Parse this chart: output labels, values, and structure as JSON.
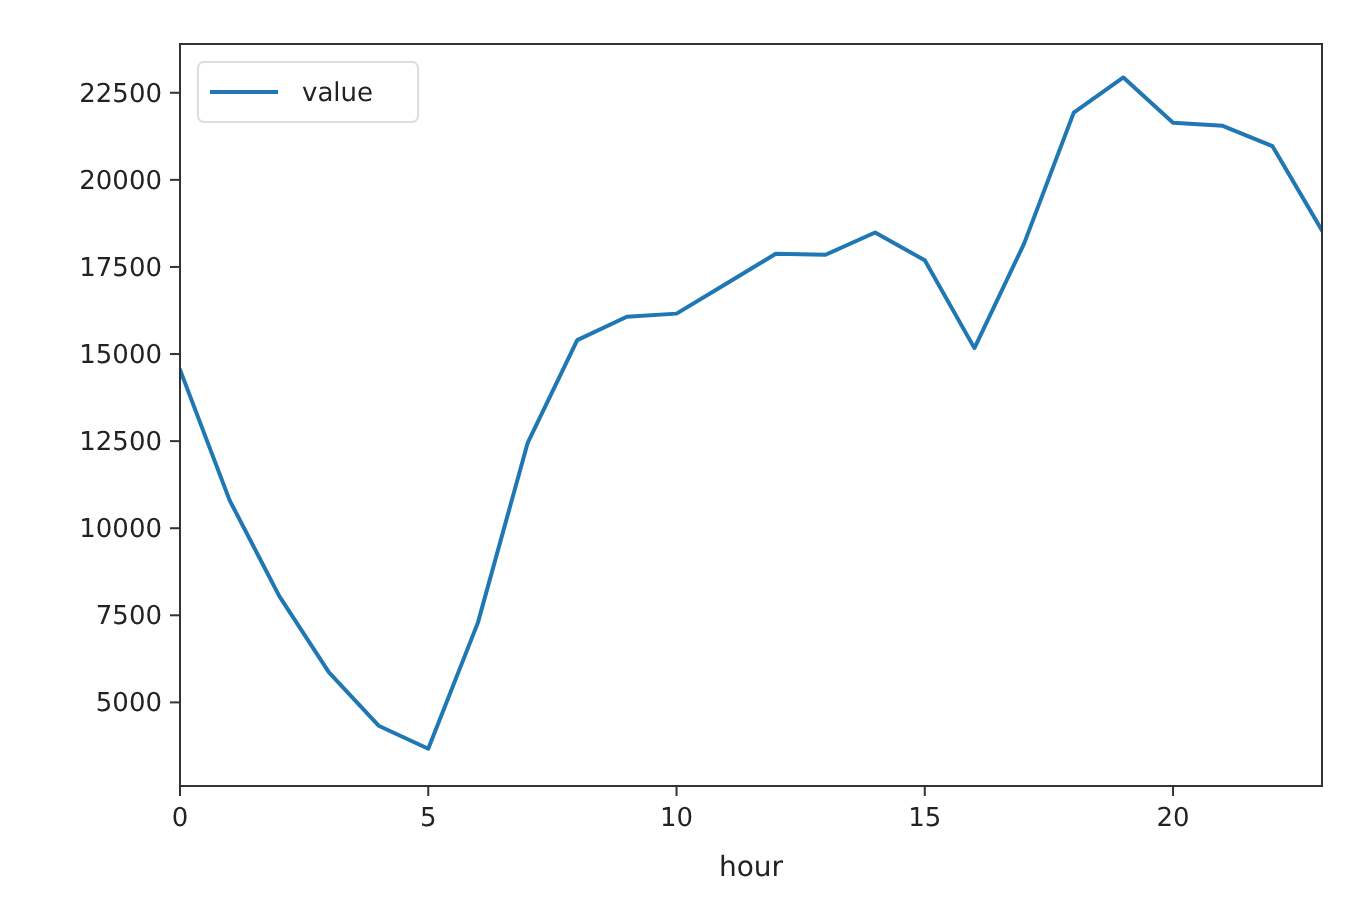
{
  "chart_data": {
    "type": "line",
    "xlabel": "hour",
    "x": [
      0,
      1,
      2,
      3,
      4,
      5,
      6,
      7,
      8,
      9,
      10,
      11,
      12,
      13,
      14,
      15,
      16,
      17,
      18,
      19,
      20,
      21,
      22,
      23
    ],
    "series": [
      {
        "name": "value",
        "color": "#1f77b4",
        "values": [
          14550,
          10800,
          8050,
          5860,
          4330,
          3670,
          7290,
          12440,
          15400,
          16070,
          16160,
          17020,
          17880,
          17850,
          18490,
          17690,
          15170,
          18170,
          21930,
          22940,
          21640,
          21550,
          20970,
          18550
        ]
      }
    ],
    "xlim": [
      0,
      23
    ],
    "xticks": [
      0,
      5,
      10,
      15,
      20
    ],
    "ylim": [
      2600,
      23900
    ],
    "yticks": [
      5000,
      7500,
      10000,
      12500,
      15000,
      17500,
      20000,
      22500
    ],
    "legend": "top left",
    "grid": false
  }
}
